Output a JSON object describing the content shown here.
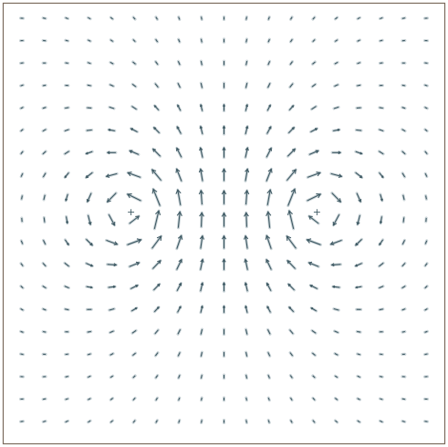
{
  "chart_data": {
    "type": "vector-field",
    "description_of_field": "vortex pair",
    "grid": {
      "nx": 19,
      "ny": 19,
      "xlim": [
        -1,
        1
      ],
      "ylim": [
        -1,
        1
      ]
    },
    "vortices": [
      {
        "x": -0.46,
        "y": 0.04,
        "circulation": 1
      },
      {
        "x": 0.46,
        "y": 0.04,
        "circulation": -1
      }
    ],
    "arrow_color": "#3f5a64",
    "glyph_color": "#c8d2d6",
    "border_color": "#7a6a5c",
    "center_marker": "+"
  }
}
